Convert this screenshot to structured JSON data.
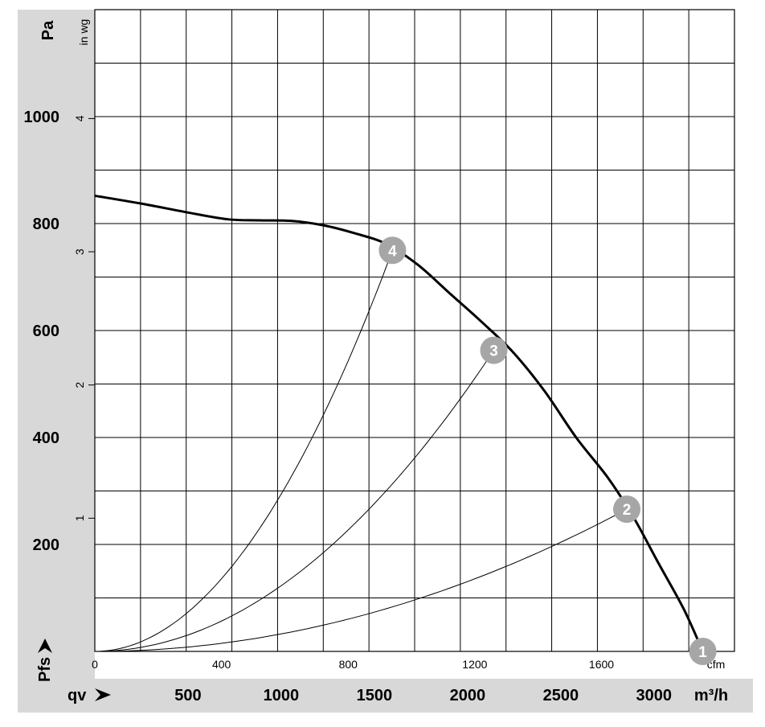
{
  "chart_data": {
    "type": "line",
    "title": "",
    "x_primary": {
      "unit": "cfm",
      "ticks": [
        0,
        400,
        800,
        1200,
        1600
      ],
      "range": [
        0,
        2020
      ]
    },
    "x_secondary": {
      "label": "qv",
      "unit": "m³/h",
      "ticks": [
        500,
        1000,
        1500,
        2000,
        2500,
        3000
      ]
    },
    "y_primary": {
      "label": "Pfs",
      "unit": "Pa",
      "ticks": [
        200,
        400,
        600,
        800,
        1000
      ],
      "range": [
        0,
        1200
      ]
    },
    "y_secondary": {
      "unit": "in wg",
      "ticks": [
        1,
        2,
        3,
        4
      ]
    },
    "fan_curve": {
      "x": [
        0,
        150,
        300,
        420,
        520,
        620,
        720,
        820,
        920,
        1020,
        1120,
        1220,
        1320,
        1420,
        1520,
        1620,
        1700,
        1780,
        1860,
        1920
      ],
      "y": [
        852,
        837,
        820,
        808,
        806,
        805,
        797,
        782,
        762,
        723,
        670,
        617,
        560,
        487,
        400,
        325,
        252,
        165,
        79,
        0
      ]
    },
    "operating_points": [
      {
        "label": "1",
        "x": 1920,
        "y": 0
      },
      {
        "label": "2",
        "x": 1680,
        "y": 266
      },
      {
        "label": "3",
        "x": 1260,
        "y": 563
      },
      {
        "label": "4",
        "x": 940,
        "y": 750
      }
    ]
  }
}
